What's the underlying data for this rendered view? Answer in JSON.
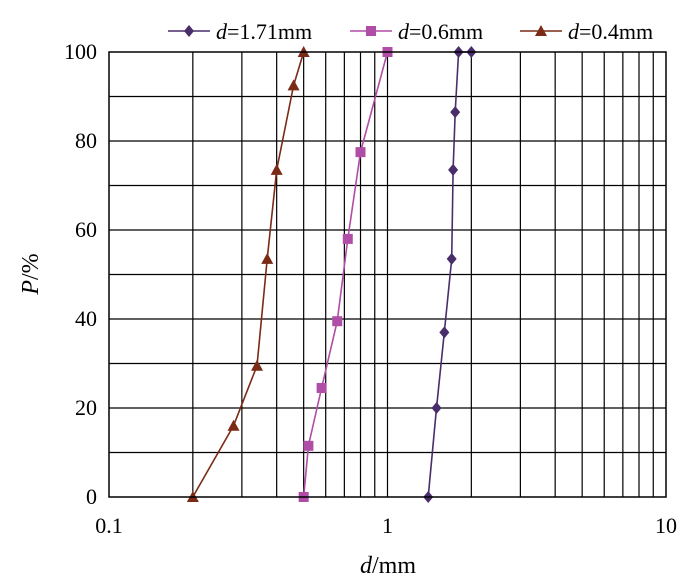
{
  "chart_data": {
    "type": "line",
    "xscale": "log",
    "xlim": [
      0.1,
      10
    ],
    "ylim": [
      0,
      100
    ],
    "xticks": [
      "0.1",
      "1",
      "10"
    ],
    "yticks": [
      "0",
      "20",
      "40",
      "60",
      "80",
      "100"
    ],
    "xlabel_var": "d",
    "xlabel_unit": "/mm",
    "ylabel_var": "P",
    "ylabel_unit": "/%",
    "grid": true,
    "legend_position": "top",
    "series": [
      {
        "name_var": "d",
        "name_rest": "=1.71mm",
        "color": "#4a2d6b",
        "marker": "diamond",
        "x": [
          1.4,
          1.5,
          1.6,
          1.7,
          1.72,
          1.75,
          1.8,
          2.0
        ],
        "y": [
          0,
          20,
          37,
          53.5,
          73.5,
          86.5,
          100,
          100
        ]
      },
      {
        "name_var": "d",
        "name_rest": "=0.6mm",
        "color": "#b04da6",
        "marker": "square",
        "x": [
          0.5,
          0.52,
          0.58,
          0.66,
          0.72,
          0.8,
          1.0
        ],
        "y": [
          0,
          11.5,
          24.5,
          39.5,
          58,
          77.5,
          100
        ]
      },
      {
        "name_var": "d",
        "name_rest": "=0.4mm",
        "color": "#7b2a15",
        "marker": "triangle",
        "x": [
          0.2,
          0.28,
          0.34,
          0.37,
          0.4,
          0.46,
          0.5
        ],
        "y": [
          0,
          16,
          29.5,
          53.5,
          73.5,
          92.5,
          100
        ]
      }
    ]
  }
}
